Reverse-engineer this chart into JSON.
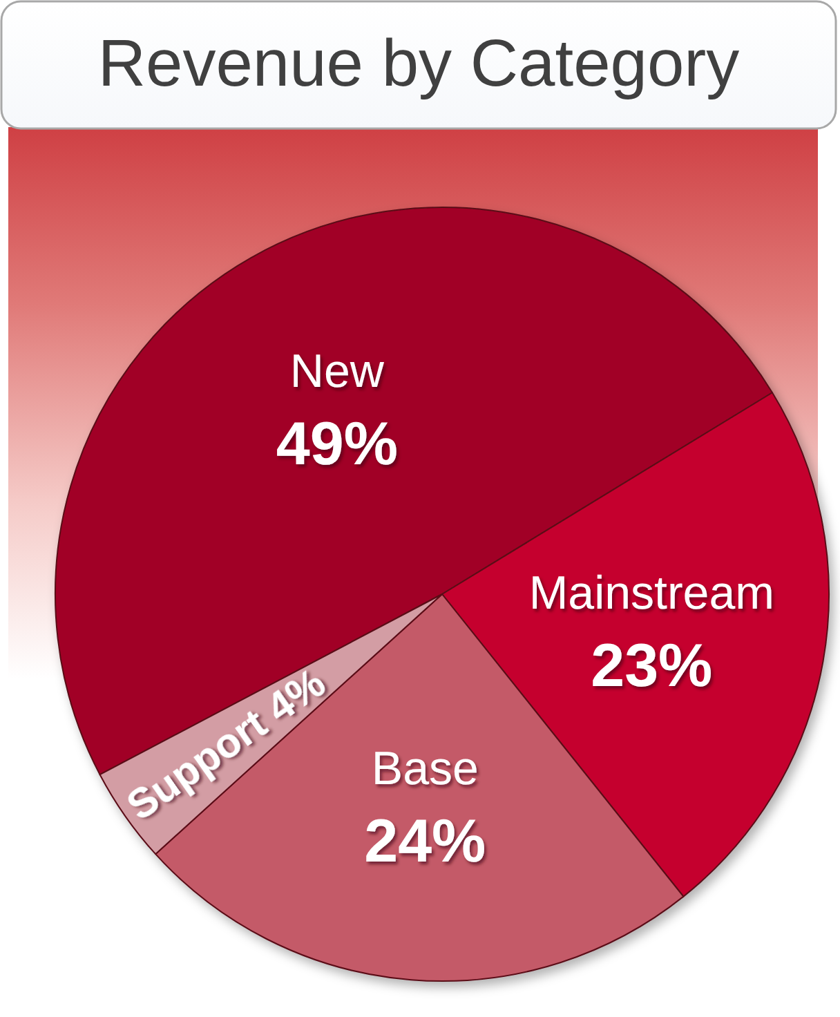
{
  "chart_data": {
    "type": "pie",
    "title": "Revenue by Category",
    "categories": [
      "New",
      "Mainstream",
      "Base",
      "Support"
    ],
    "values": [
      49,
      23,
      24,
      4
    ],
    "colors": [
      "#a10426",
      "#c5052f",
      "#c45a67",
      "#d39da4"
    ],
    "value_labels": [
      "49%",
      "23%",
      "24%",
      "4%"
    ]
  }
}
